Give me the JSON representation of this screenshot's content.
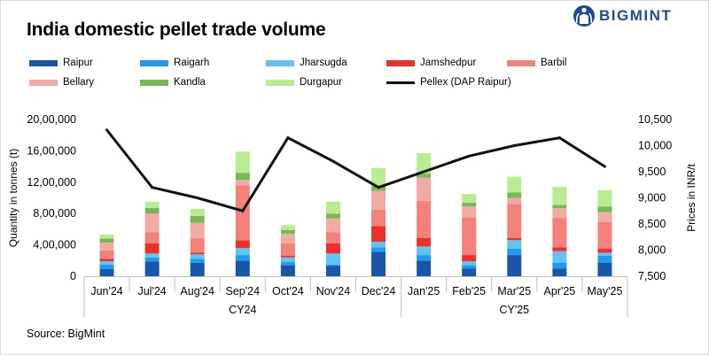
{
  "title": "India domestic pellet trade volume",
  "brand": {
    "name": "BIGMINT",
    "color": "#1d4a96"
  },
  "source": "Source: BigMint",
  "chart_data": {
    "type": "bar",
    "stacked": true,
    "title": "India domestic pellet trade volume",
    "ylabel": "Quantity in tonnes (t)",
    "y2label": "Prices in INR/t",
    "ylim": [
      0,
      2000000
    ],
    "y_ticks": [
      "0",
      "4,00,000",
      "8,00,000",
      "12,00,000",
      "16,00,000",
      "20,00,000"
    ],
    "y2lim": [
      7500,
      10500
    ],
    "y2_ticks": [
      "7,500",
      "8,000",
      "8,500",
      "9,000",
      "9,500",
      "10,000",
      "10,500"
    ],
    "categories": [
      "Jun'24",
      "Jul'24",
      "Aug'24",
      "Sep'24",
      "Oct'24",
      "Nov'24",
      "Dec'24",
      "Jan'25",
      "Feb'25",
      "Mar'25",
      "Apr'25",
      "May'25"
    ],
    "groups": [
      {
        "label": "CY24",
        "count": 7
      },
      {
        "label": "CY'25",
        "count": 5
      }
    ],
    "series": [
      {
        "name": "Raipur",
        "color": "#1756a9",
        "values": [
          90000,
          190000,
          170000,
          200000,
          140000,
          130000,
          310000,
          200000,
          100000,
          270000,
          100000,
          170000
        ]
      },
      {
        "name": "Raigarh",
        "color": "#1f9af0",
        "values": [
          60000,
          50000,
          50000,
          70000,
          40000,
          20000,
          60000,
          70000,
          40000,
          80000,
          70000,
          90000
        ]
      },
      {
        "name": "Jharsugda",
        "color": "#5fc4ee",
        "values": [
          40000,
          50000,
          60000,
          90000,
          60000,
          140000,
          70000,
          110000,
          50000,
          110000,
          150000,
          40000
        ]
      },
      {
        "name": "Jamshedpur",
        "color": "#ec3029",
        "values": [
          30000,
          130000,
          20000,
          100000,
          20000,
          130000,
          200000,
          110000,
          80000,
          30000,
          50000,
          50000
        ]
      },
      {
        "name": "Barbil",
        "color": "#f4827a",
        "values": [
          110000,
          140000,
          180000,
          700000,
          160000,
          140000,
          210000,
          470000,
          480000,
          430000,
          370000,
          340000
        ]
      },
      {
        "name": "Bellary",
        "color": "#f2aba4",
        "values": [
          100000,
          240000,
          200000,
          70000,
          120000,
          180000,
          240000,
          300000,
          140000,
          80000,
          130000,
          130000
        ]
      },
      {
        "name": "Kandla",
        "color": "#78b956",
        "values": [
          50000,
          70000,
          90000,
          90000,
          50000,
          60000,
          60000,
          50000,
          50000,
          70000,
          40000,
          70000
        ]
      },
      {
        "name": "Durgapur",
        "color": "#b7ec92",
        "values": [
          50000,
          80000,
          90000,
          270000,
          60000,
          150000,
          230000,
          260000,
          110000,
          200000,
          230000,
          210000
        ]
      }
    ],
    "line": {
      "name": "Pellex (DAP Raipur)",
      "color": "#111111",
      "axis": "right",
      "values": [
        10300,
        9200,
        9000,
        8750,
        10150,
        9700,
        9200,
        9500,
        9800,
        10000,
        10150,
        9600
      ]
    }
  }
}
